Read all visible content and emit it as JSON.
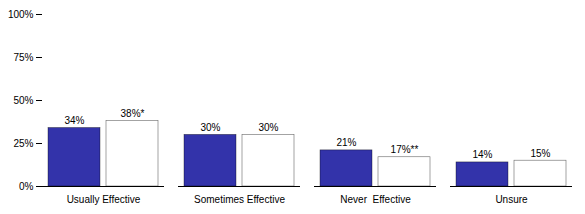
{
  "chart_data": {
    "type": "bar",
    "categories": [
      "Usually Effective",
      "Sometimes Effective",
      "Never  Effective",
      "Unsure"
    ],
    "series": [
      {
        "color": "#3333AA",
        "values": [
          34,
          30,
          21,
          14
        ],
        "value_labels": [
          "34%",
          "30%",
          "21%",
          "14%"
        ]
      },
      {
        "color": "#FFFFFF",
        "values": [
          38,
          30,
          17,
          15
        ],
        "value_labels": [
          "38%*",
          "30%",
          "17%**",
          "15%"
        ]
      }
    ],
    "ylim": [
      0,
      100
    ],
    "yticks": [
      {
        "value": 0,
        "label": "0%"
      },
      {
        "value": 25,
        "label": "25%"
      },
      {
        "value": 50,
        "label": "50%"
      },
      {
        "value": 75,
        "label": "75%"
      },
      {
        "value": 100,
        "label": "100%"
      }
    ],
    "grid": false,
    "data_labels": true
  }
}
